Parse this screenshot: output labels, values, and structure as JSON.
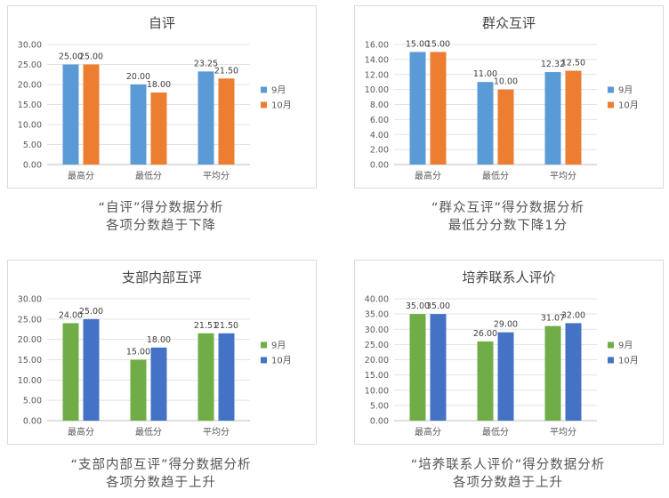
{
  "chart_data": [
    {
      "type": "bar",
      "title": "自评",
      "categories": [
        "最高分",
        "最低分",
        "平均分"
      ],
      "series": [
        {
          "name": "9月",
          "values": [
            25.0,
            20.0,
            23.25
          ],
          "color": "#5b9bd5"
        },
        {
          "name": "10月",
          "values": [
            25.0,
            18.0,
            21.5
          ],
          "color": "#ed7d31"
        }
      ],
      "ylim": [
        0,
        30
      ],
      "ystep": 5,
      "yticks": [
        "0.00",
        "5.00",
        "10.00",
        "15.00",
        "20.00",
        "25.00",
        "30.00"
      ],
      "labels": [
        [
          "25.00",
          "20.00",
          "23.25"
        ],
        [
          "25.00",
          "18.00",
          "21.50"
        ]
      ],
      "grid": true,
      "legend": "right"
    },
    {
      "type": "bar",
      "title": "群众互评",
      "categories": [
        "最高分",
        "最低分",
        "平均分"
      ],
      "series": [
        {
          "name": "9月",
          "values": [
            15.0,
            11.0,
            12.32
          ],
          "color": "#5b9bd5"
        },
        {
          "name": "10月",
          "values": [
            15.0,
            10.0,
            12.5
          ],
          "color": "#ed7d31"
        }
      ],
      "ylim": [
        0,
        16
      ],
      "ystep": 2,
      "yticks": [
        "0.00",
        "2.00",
        "4.00",
        "6.00",
        "8.00",
        "10.00",
        "12.00",
        "14.00",
        "16.00"
      ],
      "labels": [
        [
          "15.00",
          "11.00",
          "12.32"
        ],
        [
          "15.00",
          "10.00",
          "12.50"
        ]
      ],
      "grid": true,
      "legend": "right"
    },
    {
      "type": "bar",
      "title": "支部内部互评",
      "categories": [
        "最高分",
        "最低分",
        "平均分"
      ],
      "series": [
        {
          "name": "9月",
          "values": [
            24.0,
            15.0,
            21.51
          ],
          "color": "#70ad47"
        },
        {
          "name": "10月",
          "values": [
            25.0,
            18.0,
            21.5
          ],
          "color": "#4472c4"
        }
      ],
      "ylim": [
        0,
        30
      ],
      "ystep": 5,
      "yticks": [
        "0.00",
        "5.00",
        "10.00",
        "15.00",
        "20.00",
        "25.00",
        "30.00"
      ],
      "labels": [
        [
          "24.00",
          "15.00",
          "21.51"
        ],
        [
          "25.00",
          "18.00",
          "21.50"
        ]
      ],
      "grid": true,
      "legend": "right"
    },
    {
      "type": "bar",
      "title": "培养联系人评价",
      "categories": [
        "最高分",
        "最低分",
        "平均分"
      ],
      "series": [
        {
          "name": "9月",
          "values": [
            35.0,
            26.0,
            31.07
          ],
          "color": "#70ad47"
        },
        {
          "name": "10月",
          "values": [
            35.0,
            29.0,
            32.0
          ],
          "color": "#4472c4"
        }
      ],
      "ylim": [
        0,
        40
      ],
      "ystep": 5,
      "yticks": [
        "0.00",
        "5.00",
        "10.00",
        "15.00",
        "20.00",
        "25.00",
        "30.00",
        "35.00",
        "40.00"
      ],
      "labels": [
        [
          "35.00",
          "26.00",
          "31.07"
        ],
        [
          "35.00",
          "29.00",
          "32.00"
        ]
      ],
      "grid": true,
      "legend": "right"
    }
  ],
  "captions": [
    {
      "line1": "“自评”得分数据分析",
      "line2": "各项分数趋于下降"
    },
    {
      "line1": "“群众互评”得分数据分析",
      "line2": "最低分分数下降1分"
    },
    {
      "line1": "“支部内部互评”得分数据分析",
      "line2": "各项分数趋于上升"
    },
    {
      "line1": "“培养联系人评价”得分数据分析",
      "line2": "各项分数趋于上升"
    }
  ]
}
